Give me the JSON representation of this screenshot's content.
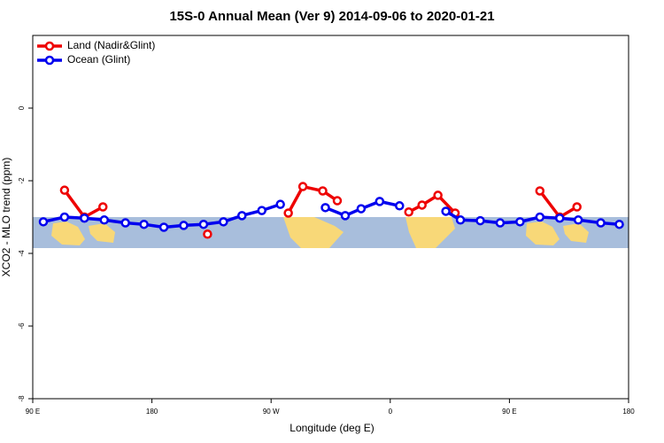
{
  "chart_data": {
    "type": "line",
    "title": "15S-0 Annual Mean (Ver 9)   2014-09-06 to 2020-01-21",
    "xlabel": "Longitude (deg E)",
    "ylabel": "XCO2 - MLO trend (ppm)",
    "xlim": [
      90,
      540
    ],
    "xticks": [
      {
        "value": 90,
        "label": "90 E"
      },
      {
        "value": 180,
        "label": "180"
      },
      {
        "value": 270,
        "label": "90 W"
      },
      {
        "value": 360,
        "label": "0"
      },
      {
        "value": 450,
        "label": "90 E"
      },
      {
        "value": 540,
        "label": "180"
      }
    ],
    "ylim": [
      -8,
      2
    ],
    "yticks": [
      0,
      -2,
      -4,
      -6,
      -8
    ],
    "legend": "top-left",
    "series": [
      {
        "name": "Land (Nadir&Glint)",
        "color": "#ee0000",
        "x": [
          114,
          129,
          143,
          null,
          222,
          null,
          283,
          294,
          309,
          320,
          null,
          374,
          384,
          396,
          409,
          null,
          473,
          488,
          501
        ],
        "values": [
          -2.26,
          -3.0,
          -2.72,
          null,
          -3.47,
          null,
          -2.89,
          -2.16,
          -2.28,
          -2.55,
          null,
          -2.86,
          -2.67,
          -2.4,
          -2.89,
          null,
          -2.28,
          -3.0,
          -2.72
        ]
      },
      {
        "name": "Ocean (Glint)",
        "color": "#0000ee",
        "x": [
          98,
          114,
          129,
          144,
          160,
          174,
          189,
          204,
          219,
          234,
          248,
          263,
          277,
          null,
          311,
          326,
          338,
          352,
          367,
          null,
          402,
          413,
          428,
          443,
          458,
          473,
          488,
          502,
          519,
          533
        ],
        "values": [
          -3.13,
          -3.0,
          -3.03,
          -3.08,
          -3.16,
          -3.2,
          -3.28,
          -3.23,
          -3.2,
          -3.13,
          -2.96,
          -2.82,
          -2.65,
          null,
          -2.74,
          -2.96,
          -2.77,
          -2.57,
          -2.69,
          null,
          -2.84,
          -3.08,
          -3.1,
          -3.16,
          -3.13,
          -3.0,
          -3.03,
          -3.08,
          -3.16,
          -3.2
        ]
      }
    ]
  }
}
